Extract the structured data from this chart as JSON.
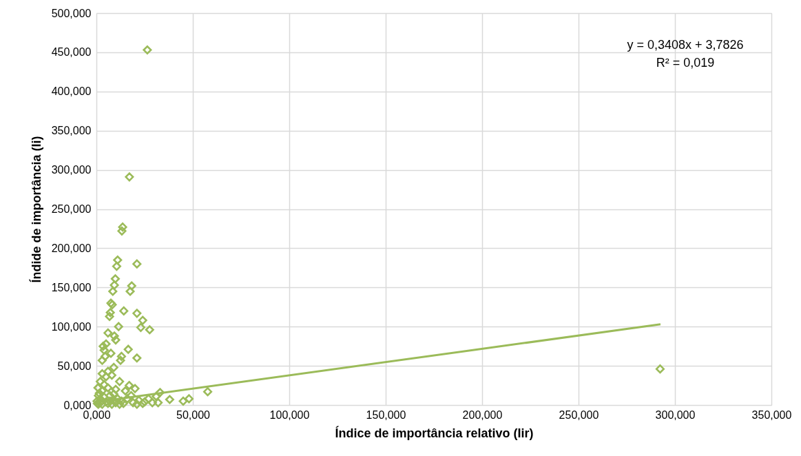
{
  "chart_data": {
    "type": "scatter",
    "xlabel": "Índice de importância relativo (Iir)",
    "ylabel": "Índide de importância (Ii)",
    "marker": "diamond",
    "grid": true,
    "xlim": [
      0,
      350
    ],
    "ylim": [
      0,
      500
    ],
    "xticks": [
      {
        "value": 0,
        "label": "0,000"
      },
      {
        "value": 50,
        "label": "50,000"
      },
      {
        "value": 100,
        "label": "100,000"
      },
      {
        "value": 150,
        "label": "150,000"
      },
      {
        "value": 200,
        "label": "200,000"
      },
      {
        "value": 250,
        "label": "250,000"
      },
      {
        "value": 300,
        "label": "300,000"
      },
      {
        "value": 350,
        "label": "350,000"
      }
    ],
    "yticks": [
      {
        "value": 0,
        "label": "0,000"
      },
      {
        "value": 50,
        "label": "50,000"
      },
      {
        "value": 100,
        "label": "100,000"
      },
      {
        "value": 150,
        "label": "150,000"
      },
      {
        "value": 200,
        "label": "200,000"
      },
      {
        "value": 250,
        "label": "250,000"
      },
      {
        "value": 300,
        "label": "300,000"
      },
      {
        "value": 350,
        "label": "350,000"
      },
      {
        "value": 400,
        "label": "400,000"
      },
      {
        "value": 450,
        "label": "450,000"
      },
      {
        "value": 500,
        "label": "500,000"
      }
    ],
    "annotations": [
      "y = 0,3408x + 3,7826",
      "R² = 0,019"
    ],
    "series": [
      {
        "color": "#9bbb59",
        "x": [
          26.4,
          17.1,
          13.6,
          13.2,
          21,
          11,
          10.5,
          9.8,
          9.3,
          8.5,
          7.5,
          8.2,
          6.8,
          7.2,
          18.3,
          17.5,
          14.2,
          21,
          24,
          23,
          27.6,
          11.5,
          6,
          9.3,
          10,
          3.5,
          5,
          4,
          4.5,
          3,
          12.5,
          16.5,
          21,
          13,
          7.5,
          9,
          6,
          3,
          2,
          5,
          8,
          12,
          17,
          20,
          15,
          10,
          6,
          3,
          1,
          2,
          4,
          7,
          9,
          11,
          13,
          16,
          18,
          22,
          25,
          27,
          29,
          31,
          33,
          32,
          38,
          45,
          48,
          57.7,
          292.3,
          0.5,
          1,
          2,
          3,
          5,
          6,
          8,
          10,
          12,
          14,
          19,
          21,
          24,
          0.3,
          1.5,
          0.8,
          4,
          7,
          9
        ],
        "values": [
          453,
          291,
          227,
          222,
          180,
          185,
          177,
          161,
          153,
          145,
          130,
          128,
          113,
          118,
          152,
          145,
          120,
          117,
          108,
          99,
          96,
          100,
          92,
          88,
          83,
          75,
          78,
          70,
          62,
          57,
          57,
          71,
          60,
          62,
          66,
          48,
          43,
          40,
          30,
          36,
          38,
          30,
          25,
          21,
          18,
          20,
          22,
          18,
          12,
          8,
          10,
          12,
          14,
          8,
          5,
          8,
          12,
          6,
          4,
          8,
          3,
          11,
          16,
          3,
          7,
          5,
          8,
          17,
          46,
          2,
          1,
          3,
          1,
          4,
          2,
          1,
          3,
          1,
          2,
          3,
          1,
          2,
          5,
          15,
          22,
          26,
          5,
          6
        ]
      },
      {
        "type": "line",
        "color": "#9bbb59",
        "marker": "none",
        "x": [
          0,
          292.5
        ],
        "values": [
          4,
          103
        ]
      }
    ]
  }
}
